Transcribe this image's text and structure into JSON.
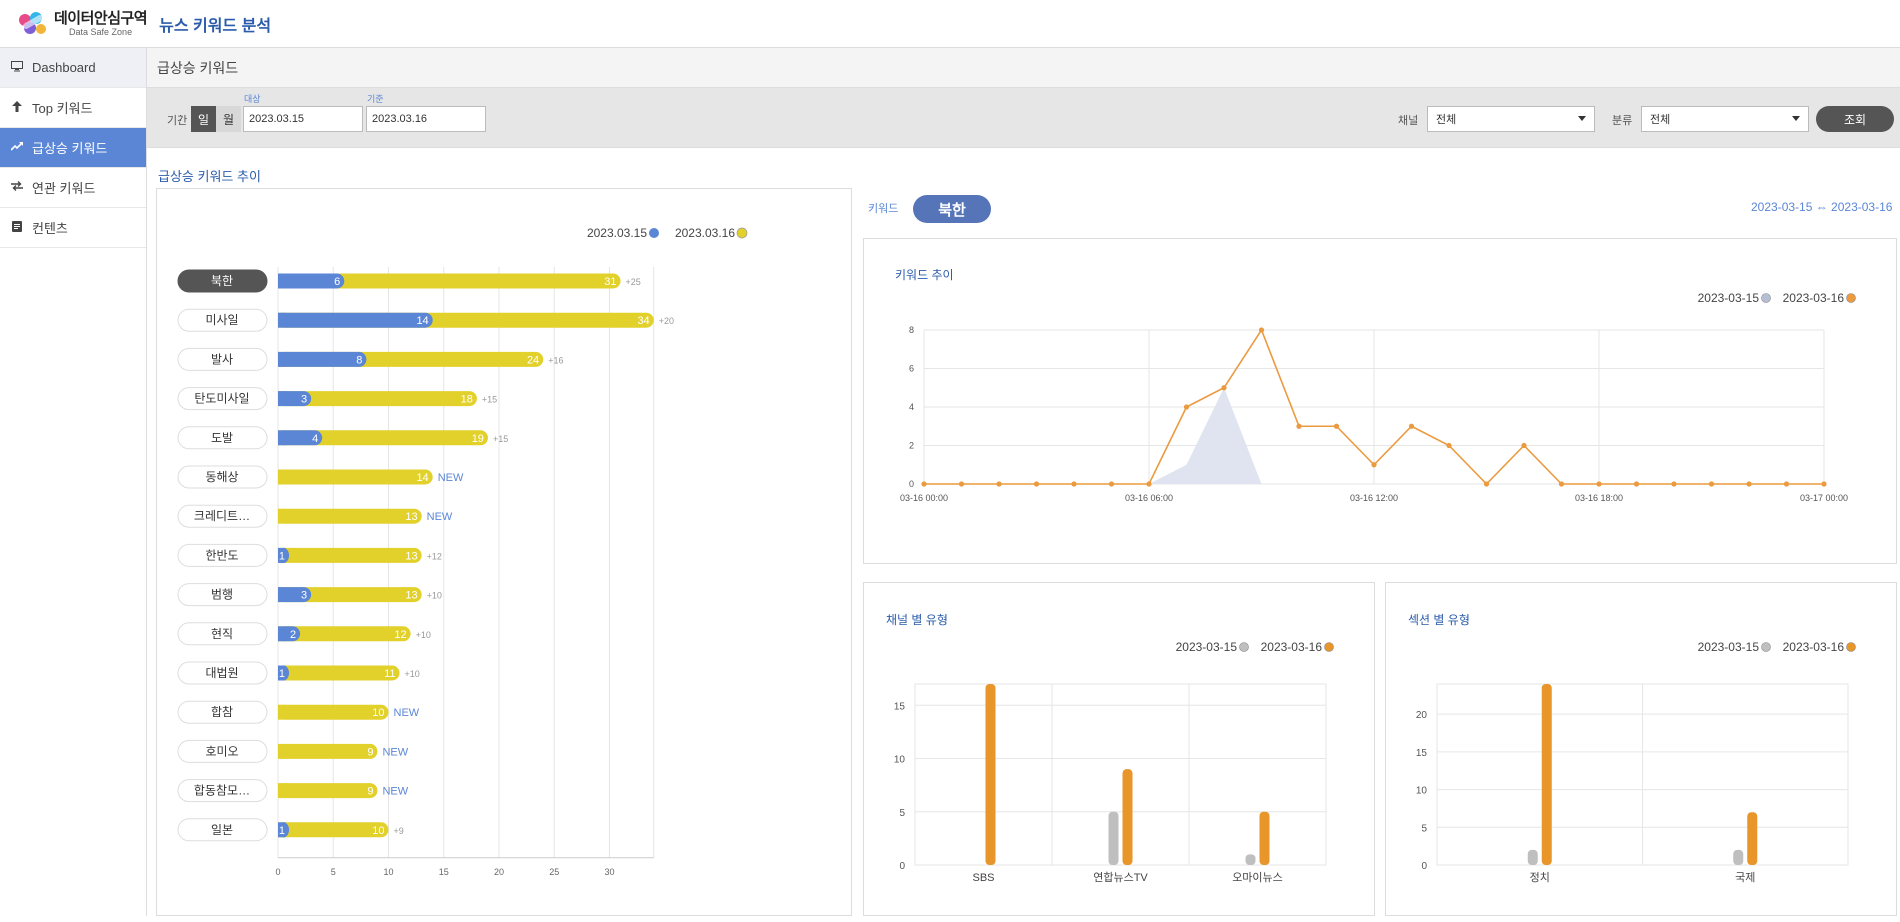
{
  "header": {
    "logo_main": "데이터안심구역",
    "logo_sub": "Data Safe Zone",
    "app_title": "뉴스 키워드 분석"
  },
  "sidebar": {
    "items": [
      {
        "label": "Dashboard",
        "icon": "monitor-icon"
      },
      {
        "label": "Top 키워드",
        "icon": "arrow-up-icon"
      },
      {
        "label": "급상승 키워드",
        "icon": "trend-icon"
      },
      {
        "label": "연관 키워드",
        "icon": "exchange-icon"
      },
      {
        "label": "컨텐츠",
        "icon": "document-icon"
      }
    ]
  },
  "page": {
    "title": "급상승 키워드"
  },
  "filters": {
    "period_label": "기간",
    "day": "일",
    "month": "월",
    "target_label": "대상",
    "target_date": "2023.03.15",
    "base_label": "기준",
    "base_date": "2023.03.16",
    "channel_label": "채널",
    "channel_value": "전체",
    "category_label": "분류",
    "category_value": "전체",
    "search_button": "조회"
  },
  "left": {
    "section_title": "급상승 키워드 추이",
    "legend": [
      "2023.03.15",
      "2023.03.16"
    ],
    "colors": {
      "prev": "#5b86d6",
      "curr": "#e3d12b",
      "new": "#5b86d6",
      "diff": "#999999"
    }
  },
  "right": {
    "keyword_label": "키워드",
    "keyword": "북한",
    "date_range": "2023-03-15 ⇔ 2023-03-16",
    "trend_title": "키워드 추이",
    "channel_title": "채널 별 유형",
    "section_title2": "섹션 별 유형",
    "legend": [
      "2023-03-15",
      "2023-03-16"
    ],
    "colors": {
      "prev": "#b6bed6",
      "curr": "#eb9a3f",
      "bar_prev": "#bfbfbf",
      "bar_curr": "#e8952a"
    }
  },
  "chart_data": [
    {
      "type": "bar",
      "orientation": "horizontal",
      "categories": [
        "북한",
        "미사일",
        "발사",
        "탄도미사일",
        "도발",
        "동해상",
        "크레디트…",
        "한반도",
        "범행",
        "현직",
        "대법원",
        "합참",
        "호미오",
        "합동참모…",
        "일본"
      ],
      "series": [
        {
          "name": "2023.03.15",
          "values": [
            6,
            14,
            8,
            3,
            4,
            0,
            0,
            1,
            3,
            2,
            1,
            0,
            0,
            0,
            1
          ]
        },
        {
          "name": "2023.03.16",
          "values": [
            31,
            34,
            24,
            18,
            19,
            14,
            13,
            13,
            13,
            12,
            11,
            10,
            9,
            9,
            10
          ]
        }
      ],
      "annotations": [
        "+25",
        "+20",
        "+16",
        "+15",
        "+15",
        "NEW",
        "NEW",
        "+12",
        "+10",
        "+10",
        "+10",
        "NEW",
        "NEW",
        "NEW",
        "+9"
      ],
      "xticks": [
        0,
        5,
        10,
        15,
        20,
        25,
        30
      ],
      "xlim": [
        0,
        34
      ],
      "grid": true,
      "legend_position": "top-right"
    },
    {
      "type": "line",
      "title": "키워드 추이",
      "x": [
        "03-16 00:00",
        "01:00",
        "02:00",
        "03:00",
        "04:00",
        "05:00",
        "03-16 06:00",
        "07:00",
        "08:00",
        "09:00",
        "10:00",
        "11:00",
        "03-16 12:00",
        "13:00",
        "14:00",
        "15:00",
        "16:00",
        "17:00",
        "03-16 18:00",
        "19:00",
        "20:00",
        "21:00",
        "22:00",
        "23:00",
        "03-17 00:00"
      ],
      "xticks": [
        "03-16 00:00",
        "03-16 06:00",
        "03-16 12:00",
        "03-16 18:00",
        "03-17 00:00"
      ],
      "series": [
        {
          "name": "2023-03-15",
          "type": "area",
          "values": [
            0,
            0,
            0,
            0,
            0,
            0,
            0,
            1,
            5,
            0,
            0,
            0,
            0,
            0,
            0,
            0,
            0,
            0,
            0,
            0,
            0,
            0,
            0,
            0,
            0
          ]
        },
        {
          "name": "2023-03-16",
          "type": "line",
          "values": [
            0,
            0,
            0,
            0,
            0,
            0,
            0,
            4,
            5,
            8,
            3,
            3,
            1,
            3,
            2,
            0,
            2,
            0,
            0,
            0,
            0,
            0,
            0,
            0,
            0
          ]
        }
      ],
      "yticks": [
        0,
        2,
        4,
        6,
        8
      ],
      "ylim": [
        0,
        8
      ],
      "grid": true,
      "legend_position": "top-right"
    },
    {
      "type": "bar",
      "title": "채널 별 유형",
      "categories": [
        "SBS",
        "연합뉴스TV",
        "오마이뉴스"
      ],
      "series": [
        {
          "name": "2023-03-15",
          "values": [
            0,
            5,
            1
          ]
        },
        {
          "name": "2023-03-16",
          "values": [
            17,
            9,
            5
          ]
        }
      ],
      "yticks": [
        0,
        5,
        10,
        15
      ],
      "ylim": [
        0,
        17
      ],
      "grid": true,
      "legend_position": "top-right"
    },
    {
      "type": "bar",
      "title": "섹션 별 유형",
      "categories": [
        "정치",
        "국제"
      ],
      "series": [
        {
          "name": "2023-03-15",
          "values": [
            2,
            2
          ]
        },
        {
          "name": "2023-03-16",
          "values": [
            24,
            7
          ]
        }
      ],
      "yticks": [
        0,
        5,
        10,
        15,
        20
      ],
      "ylim": [
        0,
        24
      ],
      "grid": true,
      "legend_position": "top-right"
    }
  ]
}
